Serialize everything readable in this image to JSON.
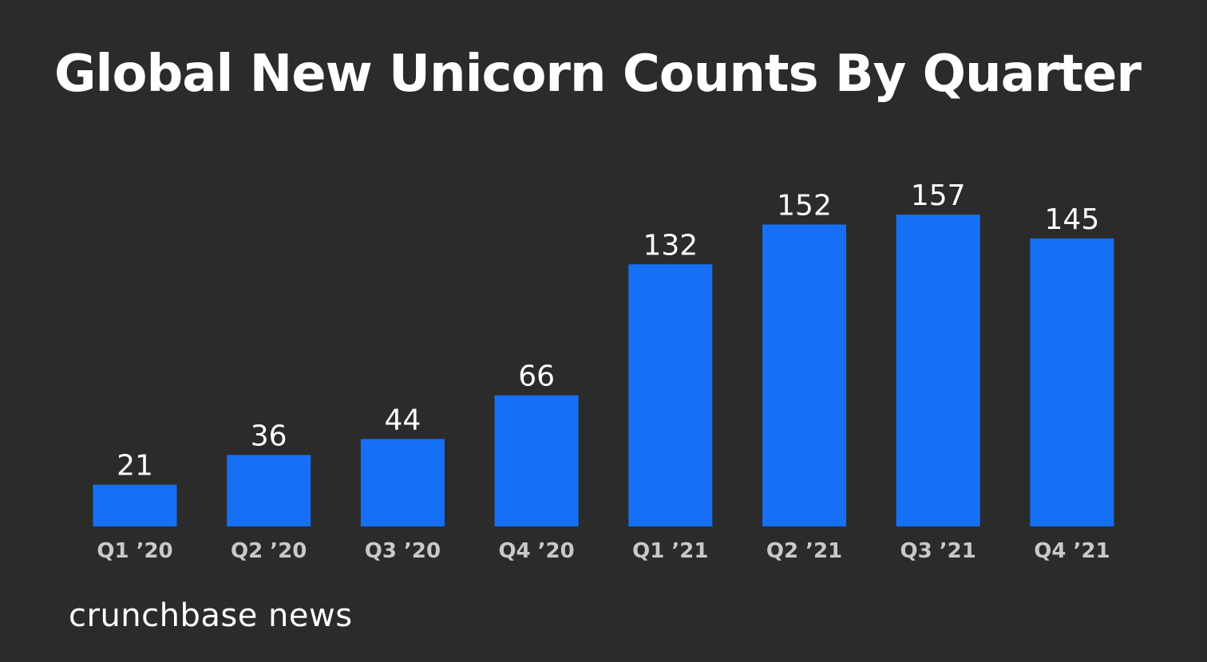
{
  "chart_data": {
    "type": "bar",
    "title": "Global New Unicorn Counts By Quarter",
    "categories": [
      "Q1 ’20",
      "Q2 ’20",
      "Q3 ’20",
      "Q4 ’20",
      "Q1 ’21",
      "Q2 ’21",
      "Q3 ’21",
      "Q4 ’21"
    ],
    "values": [
      21,
      36,
      44,
      66,
      132,
      152,
      157,
      145
    ],
    "xlabel": "",
    "ylabel": "",
    "grid": false,
    "bar_color": "#1670f5",
    "label_color": "#ffffff",
    "tick_color": "#c9c9c9",
    "background": "#2b2b2b"
  },
  "brand": {
    "text": "crunchbase news"
  }
}
